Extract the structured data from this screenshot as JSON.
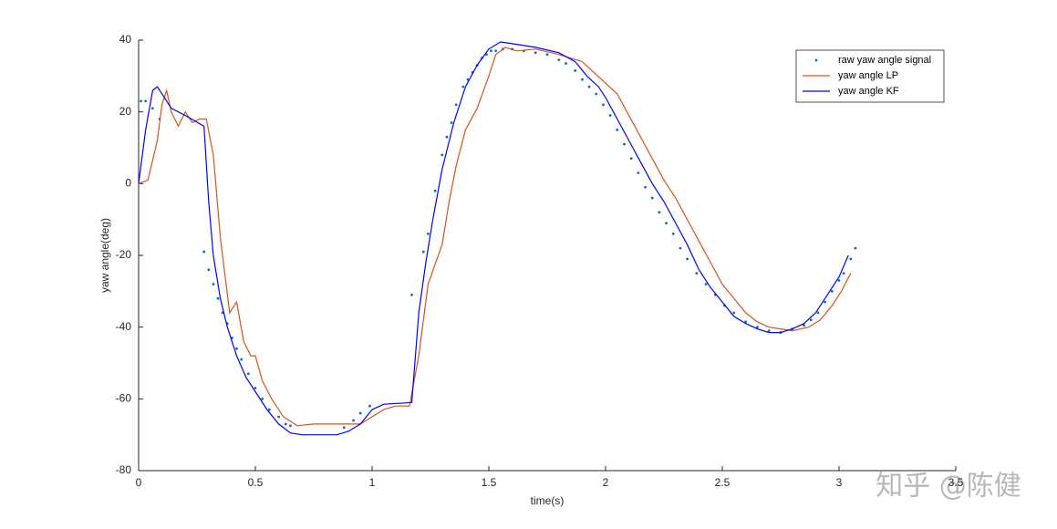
{
  "chart_data": {
    "type": "line",
    "xlabel": "time(s)",
    "ylabel": "yaw angle(deg)",
    "xlim": [
      0,
      3.5
    ],
    "xticks": [
      0,
      0.5,
      1,
      1.5,
      2,
      2.5,
      3,
      3.5
    ],
    "ylim": [
      -80,
      40
    ],
    "yticks": [
      -80,
      -60,
      -40,
      -20,
      0,
      20,
      40
    ],
    "legend": "northeast",
    "grid": false,
    "series": [
      {
        "name": "raw yaw angle signal",
        "color": "#0072bd",
        "style": "markers",
        "x": [
          0.01,
          0.03,
          0.06,
          0.09,
          0.28,
          0.3,
          0.32,
          0.34,
          0.36,
          0.38,
          0.4,
          0.42,
          0.44,
          0.47,
          0.5,
          0.53,
          0.56,
          0.6,
          0.63,
          0.65,
          0.88,
          0.92,
          0.95,
          0.99,
          1.17,
          1.22,
          1.24,
          1.27,
          1.3,
          1.32,
          1.34,
          1.36,
          1.39,
          1.41,
          1.43,
          1.45,
          1.47,
          1.49,
          1.51,
          1.53,
          1.56,
          1.6,
          1.65,
          1.7,
          1.75,
          1.8,
          1.83,
          1.87,
          1.9,
          1.93,
          1.96,
          1.99,
          2.02,
          2.05,
          2.08,
          2.11,
          2.14,
          2.17,
          2.2,
          2.23,
          2.26,
          2.29,
          2.32,
          2.35,
          2.39,
          2.43,
          2.47,
          2.51,
          2.55,
          2.6,
          2.65,
          2.7,
          2.75,
          2.8,
          2.85,
          2.88,
          2.91,
          2.94,
          2.97,
          3.0,
          3.02,
          3.05,
          3.07
        ],
        "values": [
          23,
          23,
          21,
          18,
          -19,
          -24,
          -28,
          -32,
          -36,
          -39,
          -43,
          -46,
          -49,
          -53,
          -57,
          -60,
          -63,
          -65,
          -67,
          -67.5,
          -68,
          -66,
          -64,
          -62,
          -31,
          -19,
          -14,
          -2,
          8,
          13,
          17,
          22,
          27,
          29,
          31,
          33,
          35,
          36,
          37,
          37,
          37.5,
          37.5,
          37,
          36.5,
          36,
          34.5,
          33.5,
          31.5,
          29,
          27,
          25,
          22,
          19,
          15,
          11,
          7,
          3,
          -1,
          -4,
          -8,
          -11,
          -14,
          -18,
          -21,
          -25,
          -28,
          -31,
          -34,
          -36,
          -38.5,
          -40,
          -41,
          -41.5,
          -40.5,
          -39.5,
          -38,
          -36,
          -33,
          -30,
          -27,
          -25,
          -21,
          -18
        ]
      },
      {
        "name": "yaw angle LP",
        "color": "#d95319",
        "style": "line",
        "x": [
          0,
          0.04,
          0.08,
          0.1,
          0.12,
          0.14,
          0.17,
          0.2,
          0.23,
          0.26,
          0.29,
          0.32,
          0.35,
          0.39,
          0.42,
          0.45,
          0.48,
          0.5,
          0.53,
          0.57,
          0.62,
          0.68,
          0.75,
          0.85,
          0.95,
          1.0,
          1.05,
          1.1,
          1.16,
          1.2,
          1.24,
          1.3,
          1.33,
          1.36,
          1.4,
          1.45,
          1.5,
          1.53,
          1.57,
          1.62,
          1.7,
          1.8,
          1.9,
          1.95,
          2.0,
          2.05,
          2.1,
          2.15,
          2.2,
          2.25,
          2.3,
          2.35,
          2.4,
          2.45,
          2.5,
          2.55,
          2.6,
          2.65,
          2.7,
          2.75,
          2.8,
          2.87,
          2.92,
          2.97,
          3.01,
          3.05
        ],
        "values": [
          0,
          1,
          12,
          22,
          26,
          20,
          16,
          20,
          17,
          18,
          18,
          8,
          -15,
          -36,
          -33,
          -44,
          -48,
          -48,
          -55,
          -60,
          -65,
          -67.5,
          -67,
          -67,
          -67,
          -65,
          -63,
          -62,
          -62,
          -48,
          -28,
          -17,
          -5,
          5,
          15,
          21,
          30,
          36,
          38,
          37,
          37.5,
          36,
          34,
          31,
          28,
          25,
          19,
          13,
          7,
          1,
          -4,
          -10,
          -16,
          -22,
          -28,
          -32,
          -36,
          -38.5,
          -40,
          -40.5,
          -41,
          -40,
          -38,
          -34,
          -30,
          -25
        ]
      },
      {
        "name": "yaw angle KF",
        "color": "#0000ff",
        "style": "line",
        "x": [
          0,
          0.03,
          0.06,
          0.08,
          0.11,
          0.14,
          0.2,
          0.28,
          0.3,
          0.32,
          0.35,
          0.38,
          0.42,
          0.46,
          0.5,
          0.55,
          0.6,
          0.65,
          0.7,
          0.85,
          0.9,
          0.95,
          1.0,
          1.05,
          1.17,
          1.2,
          1.23,
          1.26,
          1.3,
          1.35,
          1.4,
          1.45,
          1.5,
          1.55,
          1.6,
          1.7,
          1.8,
          1.87,
          1.92,
          1.97,
          2.0,
          2.05,
          2.1,
          2.15,
          2.2,
          2.25,
          2.3,
          2.35,
          2.4,
          2.45,
          2.5,
          2.55,
          2.6,
          2.65,
          2.7,
          2.75,
          2.8,
          2.85,
          2.9,
          2.95,
          3.0,
          3.04
        ],
        "values": [
          0,
          15,
          26,
          27,
          24,
          21,
          19,
          16,
          -5,
          -20,
          -32,
          -40,
          -48,
          -54,
          -58,
          -63,
          -67,
          -69.5,
          -70,
          -70,
          -69,
          -67,
          -63,
          -61.5,
          -61,
          -36,
          -22,
          -10,
          4,
          17,
          27,
          33,
          37.5,
          39.5,
          39,
          38,
          36.5,
          34,
          30,
          27,
          24,
          18,
          12,
          6,
          0,
          -5,
          -11,
          -17,
          -24,
          -29,
          -33,
          -37,
          -39,
          -40.5,
          -41.5,
          -41.5,
          -40.5,
          -39,
          -36,
          -31,
          -26,
          -20
        ]
      }
    ]
  },
  "watermark": "知乎 @陈健"
}
